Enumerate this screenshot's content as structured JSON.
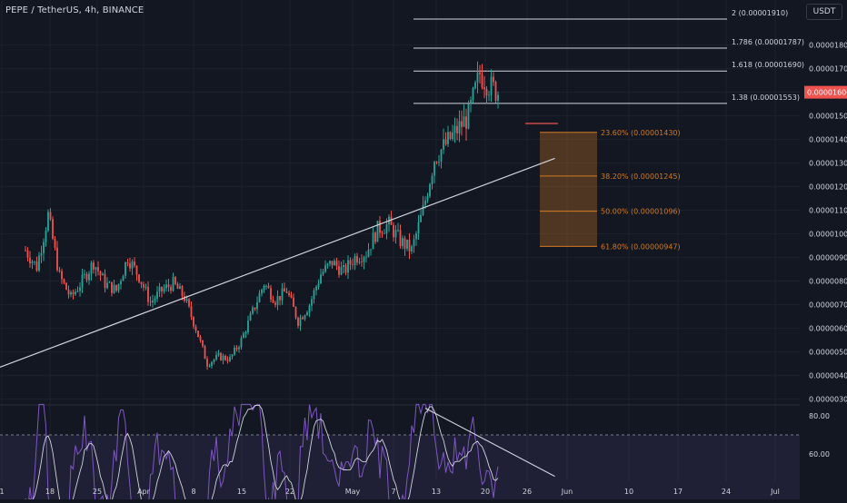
{
  "header": {
    "symbol_line": "PEPE / TetherUS, 4h, BINANCE",
    "currency_badge": "USDT"
  },
  "colors": {
    "background": "#131722",
    "up": "#26a69a",
    "down": "#ef5350",
    "grid": "#1e222d",
    "fib": "#d1d4dc",
    "fib_retracement": "#d17a22",
    "trendline": "#d1d4dc",
    "rsi": "#7e57c2",
    "rsi_ma": "#d1d4dc",
    "price_tag": "#ef5350"
  },
  "chart_data": {
    "type": "candlestick",
    "title": "PEPE / TetherUS, 4h, BINANCE",
    "x_ticks": [
      "1",
      "18",
      "25",
      "Apr",
      "8",
      "15",
      "22",
      "May",
      "7",
      "13",
      "20",
      "26",
      "Jun",
      "10",
      "17",
      "24",
      "Jul"
    ],
    "y_ticks": [
      "0.00001800",
      "0.00001700",
      "0.00001600",
      "0.00001500",
      "0.00001400",
      "0.00001300",
      "0.00001200",
      "0.00001100",
      "0.00001000",
      "0.00000900",
      "0.00000800",
      "0.00000700",
      "0.00000600",
      "0.00000500",
      "0.00000400",
      "0.00000300"
    ],
    "y_unit": "USDT",
    "last_price": "0.00001600",
    "price_path": [
      [
        0,
        9.3e-06
      ],
      [
        5,
        8.6e-06
      ],
      [
        10,
        1.08e-05
      ],
      [
        15,
        8.2e-06
      ],
      [
        20,
        7.3e-06
      ],
      [
        25,
        8e-06
      ],
      [
        30,
        8.8e-06
      ],
      [
        35,
        7.9e-06
      ],
      [
        40,
        7.6e-06
      ],
      [
        45,
        9e-06
      ],
      [
        50,
        8.2e-06
      ],
      [
        55,
        7.1e-06
      ],
      [
        60,
        7.6e-06
      ],
      [
        65,
        7.9e-06
      ],
      [
        70,
        7.3e-06
      ],
      [
        75,
        6e-06
      ],
      [
        80,
        4.5e-06
      ],
      [
        85,
        4.8e-06
      ],
      [
        90,
        4.7e-06
      ],
      [
        95,
        5.5e-06
      ],
      [
        100,
        6.7e-06
      ],
      [
        105,
        7.9e-06
      ],
      [
        110,
        7.2e-06
      ],
      [
        115,
        7.6e-06
      ],
      [
        120,
        6.3e-06
      ],
      [
        125,
        7e-06
      ],
      [
        130,
        8.3e-06
      ],
      [
        135,
        8.8e-06
      ],
      [
        140,
        8.4e-06
      ],
      [
        145,
        9e-06
      ],
      [
        150,
        9.2e-06
      ],
      [
        155,
        1.02e-05
      ],
      [
        160,
        1.04e-05
      ],
      [
        165,
        9.7e-06
      ],
      [
        170,
        9.3e-06
      ],
      [
        175,
        1.1e-05
      ],
      [
        180,
        1.32e-05
      ],
      [
        185,
        1.38e-05
      ],
      [
        190,
        1.44e-05
      ],
      [
        195,
        1.5e-05
      ],
      [
        200,
        1.68e-05
      ],
      [
        205,
        1.62e-05
      ],
      [
        208,
        1.6e-05
      ]
    ],
    "fib_extension_levels": [
      {
        "label": "2 (0.00001910)",
        "price": 1.91e-05
      },
      {
        "label": "1.786 (0.00001787)",
        "price": 1.787e-05
      },
      {
        "label": "1.618 (0.00001690)",
        "price": 1.69e-05
      },
      {
        "label": "1.38 (0.00001553)",
        "price": 1.553e-05
      }
    ],
    "fib_retracement_levels": [
      {
        "label": "23.60% (0.00001430)",
        "price": 1.43e-05
      },
      {
        "label": "38.20% (0.00001245)",
        "price": 1.245e-05
      },
      {
        "label": "50.00% (0.00001096)",
        "price": 1.096e-05
      },
      {
        "label": "61.80% (0.00000947)",
        "price": 9.47e-06
      }
    ],
    "support_trendline": {
      "start": [
        -32,
        3.6e-06
      ],
      "end": [
        233,
        1.32e-05
      ]
    },
    "rsi": {
      "y_ticks": [
        "80.00",
        "60.00"
      ],
      "upper_band": 70,
      "lower_band": 30,
      "divergence_line": {
        "start": [
          176,
          84
        ],
        "end": [
          205,
          54
        ]
      }
    }
  }
}
